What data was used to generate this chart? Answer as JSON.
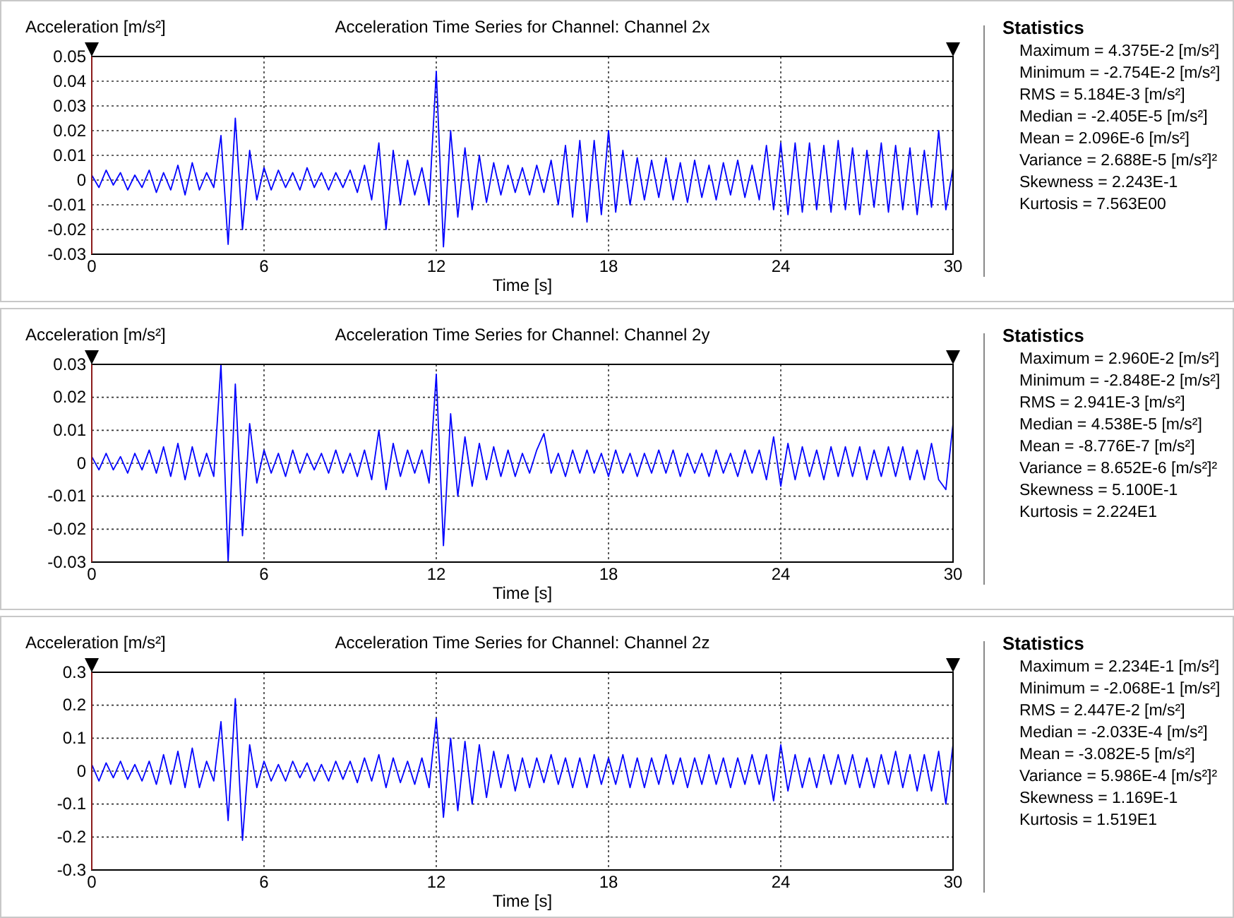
{
  "chart_data": [
    {
      "type": "line",
      "title": "Acceleration Time Series for Channel: Channel 2x",
      "ylabel": "Acceleration [m/s²]",
      "xlabel": "Time [s]",
      "xlim": [
        0,
        30
      ],
      "xticks": [
        0,
        6,
        12,
        18,
        24,
        30
      ],
      "ylim": [
        -0.03,
        0.05
      ],
      "yticks": [
        -0.03,
        -0.02,
        -0.01,
        0,
        0.01,
        0.02,
        0.03,
        0.04,
        0.05
      ],
      "grid": true,
      "annotations": [
        "Statistics",
        "Maximum = 4.375E-2 [m/s²]",
        "Minimum = -2.754E-2 [m/s²]",
        "RMS = 5.184E-3 [m/s²]",
        "Median = -2.405E-5 [m/s²]",
        "Mean = 2.096E-6 [m/s²]",
        "Variance = 2.688E-5 [m/s²]²",
        "Skewness = 2.243E-1",
        "Kurtosis = 7.563E00"
      ],
      "x": [
        0,
        0.25,
        0.5,
        0.75,
        1,
        1.25,
        1.5,
        1.75,
        2,
        2.25,
        2.5,
        2.75,
        3,
        3.25,
        3.5,
        3.75,
        4,
        4.25,
        4.5,
        4.75,
        5,
        5.25,
        5.5,
        5.75,
        6,
        6.25,
        6.5,
        6.75,
        7,
        7.25,
        7.5,
        7.75,
        8,
        8.25,
        8.5,
        8.75,
        9,
        9.25,
        9.5,
        9.75,
        10,
        10.25,
        10.5,
        10.75,
        11,
        11.25,
        11.5,
        11.75,
        12,
        12.25,
        12.5,
        12.75,
        13,
        13.25,
        13.5,
        13.75,
        14,
        14.25,
        14.5,
        14.75,
        15,
        15.25,
        15.5,
        15.75,
        16,
        16.25,
        16.5,
        16.75,
        17,
        17.25,
        17.5,
        17.75,
        18,
        18.25,
        18.5,
        18.75,
        19,
        19.25,
        19.5,
        19.75,
        20,
        20.25,
        20.5,
        20.75,
        21,
        21.25,
        21.5,
        21.75,
        22,
        22.25,
        22.5,
        22.75,
        23,
        23.25,
        23.5,
        23.75,
        24,
        24.25,
        24.5,
        24.75,
        25,
        25.25,
        25.5,
        25.75,
        26,
        26.25,
        26.5,
        26.75,
        27,
        27.25,
        27.5,
        27.75,
        28,
        28.25,
        28.5,
        28.75,
        29,
        29.25,
        29.5,
        29.75,
        30
      ],
      "series": [
        {
          "color": "#0000ff",
          "values": [
            0.002,
            -0.003,
            0.004,
            -0.002,
            0.003,
            -0.004,
            0.002,
            -0.003,
            0.004,
            -0.005,
            0.003,
            -0.004,
            0.006,
            -0.006,
            0.007,
            -0.004,
            0.003,
            -0.003,
            0.018,
            -0.026,
            0.025,
            -0.02,
            0.012,
            -0.008,
            0.005,
            -0.004,
            0.004,
            -0.003,
            0.003,
            -0.004,
            0.005,
            -0.003,
            0.003,
            -0.004,
            0.003,
            -0.003,
            0.004,
            -0.005,
            0.006,
            -0.008,
            0.015,
            -0.02,
            0.012,
            -0.01,
            0.008,
            -0.006,
            0.005,
            -0.01,
            0.044,
            -0.027,
            0.02,
            -0.015,
            0.013,
            -0.012,
            0.01,
            -0.009,
            0.007,
            -0.006,
            0.006,
            -0.005,
            0.005,
            -0.006,
            0.006,
            -0.005,
            0.008,
            -0.01,
            0.014,
            -0.015,
            0.016,
            -0.017,
            0.016,
            -0.014,
            0.02,
            -0.013,
            0.012,
            -0.01,
            0.009,
            -0.008,
            0.008,
            -0.007,
            0.009,
            -0.008,
            0.007,
            -0.009,
            0.008,
            -0.007,
            0.006,
            -0.008,
            0.007,
            -0.006,
            0.008,
            -0.007,
            0.006,
            -0.008,
            0.014,
            -0.012,
            0.015,
            -0.014,
            0.015,
            -0.013,
            0.015,
            -0.012,
            0.014,
            -0.013,
            0.016,
            -0.012,
            0.013,
            -0.014,
            0.012,
            -0.011,
            0.015,
            -0.013,
            0.014,
            -0.012,
            0.013,
            -0.014,
            0.012,
            -0.011,
            0.02,
            -0.012,
            0.005
          ]
        }
      ]
    },
    {
      "type": "line",
      "title": "Acceleration Time Series for Channel: Channel 2y",
      "ylabel": "Acceleration [m/s²]",
      "xlabel": "Time [s]",
      "xlim": [
        0,
        30
      ],
      "xticks": [
        0,
        6,
        12,
        18,
        24,
        30
      ],
      "ylim": [
        -0.03,
        0.03
      ],
      "yticks": [
        -0.03,
        -0.02,
        -0.01,
        0,
        0.01,
        0.02,
        0.03
      ],
      "grid": true,
      "annotations": [
        "Statistics",
        "Maximum = 2.960E-2 [m/s²]",
        "Minimum = -2.848E-2 [m/s²]",
        "RMS = 2.941E-3 [m/s²]",
        "Median = 4.538E-5 [m/s²]",
        "Mean = -8.776E-7 [m/s²]",
        "Variance = 8.652E-6 [m/s²]²",
        "Skewness = 5.100E-1",
        "Kurtosis = 2.224E1"
      ],
      "x": [
        0,
        0.25,
        0.5,
        0.75,
        1,
        1.25,
        1.5,
        1.75,
        2,
        2.25,
        2.5,
        2.75,
        3,
        3.25,
        3.5,
        3.75,
        4,
        4.25,
        4.5,
        4.75,
        5,
        5.25,
        5.5,
        5.75,
        6,
        6.25,
        6.5,
        6.75,
        7,
        7.25,
        7.5,
        7.75,
        8,
        8.25,
        8.5,
        8.75,
        9,
        9.25,
        9.5,
        9.75,
        10,
        10.25,
        10.5,
        10.75,
        11,
        11.25,
        11.5,
        11.75,
        12,
        12.25,
        12.5,
        12.75,
        13,
        13.25,
        13.5,
        13.75,
        14,
        14.25,
        14.5,
        14.75,
        15,
        15.25,
        15.5,
        15.75,
        16,
        16.25,
        16.5,
        16.75,
        17,
        17.25,
        17.5,
        17.75,
        18,
        18.25,
        18.5,
        18.75,
        19,
        19.25,
        19.5,
        19.75,
        20,
        20.25,
        20.5,
        20.75,
        21,
        21.25,
        21.5,
        21.75,
        22,
        22.25,
        22.5,
        22.75,
        23,
        23.25,
        23.5,
        23.75,
        24,
        24.25,
        24.5,
        24.75,
        25,
        25.25,
        25.5,
        25.75,
        26,
        26.25,
        26.5,
        26.75,
        27,
        27.25,
        27.5,
        27.75,
        28,
        28.25,
        28.5,
        28.75,
        29,
        29.25,
        29.5,
        29.75,
        30
      ],
      "series": [
        {
          "color": "#0000ff",
          "values": [
            0.002,
            -0.002,
            0.003,
            -0.002,
            0.002,
            -0.003,
            0.003,
            -0.002,
            0.004,
            -0.003,
            0.005,
            -0.004,
            0.006,
            -0.005,
            0.005,
            -0.004,
            0.003,
            -0.004,
            0.03,
            -0.03,
            0.024,
            -0.022,
            0.012,
            -0.006,
            0.004,
            -0.003,
            0.003,
            -0.004,
            0.004,
            -0.003,
            0.003,
            -0.002,
            0.003,
            -0.003,
            0.004,
            -0.003,
            0.003,
            -0.004,
            0.004,
            -0.005,
            0.01,
            -0.008,
            0.006,
            -0.004,
            0.004,
            -0.003,
            0.004,
            -0.006,
            0.027,
            -0.025,
            0.015,
            -0.01,
            0.008,
            -0.007,
            0.006,
            -0.005,
            0.005,
            -0.004,
            0.004,
            -0.004,
            0.003,
            -0.003,
            0.004,
            0.009,
            -0.003,
            0.003,
            -0.004,
            0.004,
            -0.003,
            0.004,
            -0.003,
            0.003,
            -0.004,
            0.004,
            -0.003,
            0.003,
            -0.004,
            0.003,
            -0.003,
            0.004,
            -0.003,
            0.004,
            -0.004,
            0.003,
            -0.003,
            0.003,
            -0.004,
            0.004,
            -0.003,
            0.003,
            -0.004,
            0.004,
            -0.003,
            0.004,
            -0.005,
            0.008,
            -0.007,
            0.006,
            -0.005,
            0.005,
            -0.004,
            0.004,
            -0.005,
            0.005,
            -0.004,
            0.005,
            -0.004,
            0.005,
            -0.005,
            0.004,
            -0.004,
            0.005,
            -0.004,
            0.005,
            -0.005,
            0.004,
            -0.005,
            0.006,
            -0.005,
            -0.008,
            0.012
          ]
        }
      ]
    },
    {
      "type": "line",
      "title": "Acceleration Time Series for Channel: Channel 2z",
      "ylabel": "Acceleration [m/s²]",
      "xlabel": "Time [s]",
      "xlim": [
        0,
        30
      ],
      "xticks": [
        0,
        6,
        12,
        18,
        24,
        30
      ],
      "ylim": [
        -0.3,
        0.3
      ],
      "yticks": [
        -0.3,
        -0.2,
        -0.1,
        0,
        0.1,
        0.2,
        0.3
      ],
      "grid": true,
      "annotations": [
        "Statistics",
        "Maximum = 2.234E-1 [m/s²]",
        "Minimum = -2.068E-1 [m/s²]",
        "RMS = 2.447E-2 [m/s²]",
        "Median = -2.033E-4 [m/s²]",
        "Mean = -3.082E-5 [m/s²]",
        "Variance = 5.986E-4 [m/s²]²",
        "Skewness = 1.169E-1",
        "Kurtosis = 1.519E1"
      ],
      "x": [
        0,
        0.25,
        0.5,
        0.75,
        1,
        1.25,
        1.5,
        1.75,
        2,
        2.25,
        2.5,
        2.75,
        3,
        3.25,
        3.5,
        3.75,
        4,
        4.25,
        4.5,
        4.75,
        5,
        5.25,
        5.5,
        5.75,
        6,
        6.25,
        6.5,
        6.75,
        7,
        7.25,
        7.5,
        7.75,
        8,
        8.25,
        8.5,
        8.75,
        9,
        9.25,
        9.5,
        9.75,
        10,
        10.25,
        10.5,
        10.75,
        11,
        11.25,
        11.5,
        11.75,
        12,
        12.25,
        12.5,
        12.75,
        13,
        13.25,
        13.5,
        13.75,
        14,
        14.25,
        14.5,
        14.75,
        15,
        15.25,
        15.5,
        15.75,
        16,
        16.25,
        16.5,
        16.75,
        17,
        17.25,
        17.5,
        17.75,
        18,
        18.25,
        18.5,
        18.75,
        19,
        19.25,
        19.5,
        19.75,
        20,
        20.25,
        20.5,
        20.75,
        21,
        21.25,
        21.5,
        21.75,
        22,
        22.25,
        22.5,
        22.75,
        23,
        23.25,
        23.5,
        23.75,
        24,
        24.25,
        24.5,
        24.75,
        25,
        25.25,
        25.5,
        25.75,
        26,
        26.25,
        26.5,
        26.75,
        27,
        27.25,
        27.5,
        27.75,
        28,
        28.25,
        28.5,
        28.75,
        29,
        29.25,
        29.5,
        29.75,
        30
      ],
      "series": [
        {
          "color": "#0000ff",
          "values": [
            0.02,
            -0.03,
            0.025,
            -0.02,
            0.03,
            -0.025,
            0.02,
            -0.03,
            0.03,
            -0.04,
            0.05,
            -0.04,
            0.06,
            -0.05,
            0.07,
            -0.05,
            0.03,
            -0.03,
            0.15,
            -0.15,
            0.22,
            -0.21,
            0.08,
            -0.05,
            0.03,
            -0.03,
            0.02,
            -0.03,
            0.03,
            -0.02,
            0.025,
            -0.03,
            0.02,
            -0.03,
            0.03,
            -0.025,
            0.03,
            -0.035,
            0.04,
            -0.03,
            0.05,
            -0.05,
            0.04,
            -0.035,
            0.03,
            -0.04,
            0.04,
            -0.05,
            0.16,
            -0.14,
            0.1,
            -0.12,
            0.09,
            -0.1,
            0.08,
            -0.08,
            0.06,
            -0.05,
            0.05,
            -0.06,
            0.04,
            -0.05,
            0.04,
            -0.035,
            0.05,
            -0.04,
            0.04,
            -0.05,
            0.04,
            -0.05,
            0.05,
            -0.04,
            0.04,
            -0.04,
            0.05,
            -0.05,
            0.04,
            -0.05,
            0.04,
            -0.04,
            0.05,
            -0.04,
            0.04,
            -0.05,
            0.04,
            -0.04,
            0.05,
            -0.04,
            0.04,
            -0.05,
            0.04,
            -0.04,
            0.05,
            -0.04,
            0.05,
            -0.09,
            0.08,
            -0.06,
            0.05,
            -0.05,
            0.04,
            -0.05,
            0.05,
            -0.04,
            0.05,
            -0.04,
            0.05,
            -0.05,
            0.04,
            -0.05,
            0.05,
            -0.04,
            0.06,
            -0.05,
            0.05,
            -0.06,
            0.05,
            -0.06,
            0.06,
            -0.1,
            0.08
          ]
        }
      ]
    }
  ]
}
